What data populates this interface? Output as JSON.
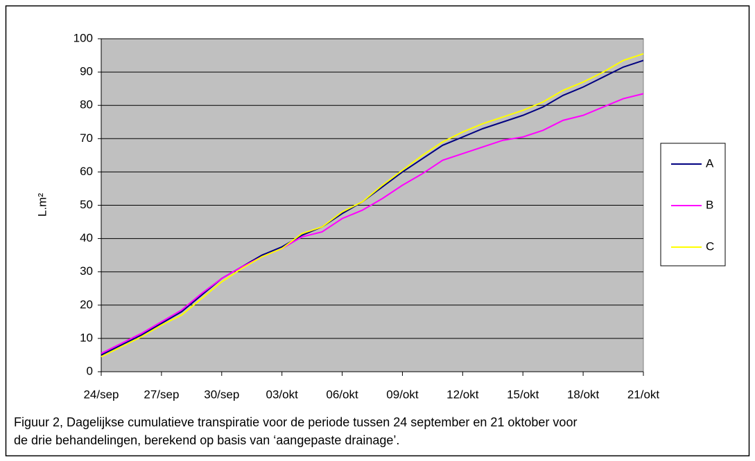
{
  "chart_data": {
    "type": "line",
    "y_label": "L.m²",
    "caption": [
      "Figuur 2, Dagelijkse cumulatieve transpiratie voor de periode tussen 24 september en 21 oktober voor",
      "de drie behandelingen, berekend op basis van ‘aangepaste drainage’."
    ],
    "categories": [
      "24/sep",
      null,
      null,
      "27/sep",
      null,
      null,
      "30/sep",
      null,
      null,
      "03/okt",
      null,
      null,
      "06/okt",
      null,
      null,
      "09/okt",
      null,
      null,
      "12/okt",
      null,
      null,
      "15/okt",
      null,
      null,
      "18/okt",
      null,
      null,
      "21/okt"
    ],
    "series": [
      {
        "name": "A",
        "color": "#000080",
        "values": [
          5,
          8,
          11,
          14.5,
          18,
          23,
          28,
          31.5,
          35,
          37.5,
          41,
          43.5,
          47.5,
          51,
          55.5,
          60,
          64,
          68,
          70.5,
          73,
          75,
          77,
          79.5,
          83,
          85.5,
          88.5,
          91.5,
          93.5
        ]
      },
      {
        "name": "B",
        "color": "#ff00ff",
        "values": [
          5.5,
          8.5,
          11.5,
          15,
          18.5,
          23.5,
          28,
          31.5,
          34.5,
          37,
          40.5,
          42,
          46,
          48.5,
          52,
          56,
          59.5,
          63.5,
          65.5,
          67.5,
          69.5,
          70.5,
          72.5,
          75.5,
          77,
          79.5,
          82,
          83.5
        ]
      },
      {
        "name": "C",
        "color": "#ffff00",
        "values": [
          4.5,
          7.5,
          10.5,
          14,
          17,
          22,
          27,
          31,
          34.5,
          37,
          41.5,
          43.5,
          48,
          51,
          56,
          60.5,
          65,
          69,
          72,
          74.5,
          76.5,
          78.5,
          81,
          84.5,
          87,
          90,
          93.5,
          95.5
        ]
      }
    ],
    "ylim": [
      0,
      100
    ],
    "yticks": [
      0,
      10,
      20,
      30,
      40,
      50,
      60,
      70,
      80,
      90,
      100
    ],
    "grid": true,
    "legend": "right",
    "plot_background": "#c0c0c0"
  }
}
